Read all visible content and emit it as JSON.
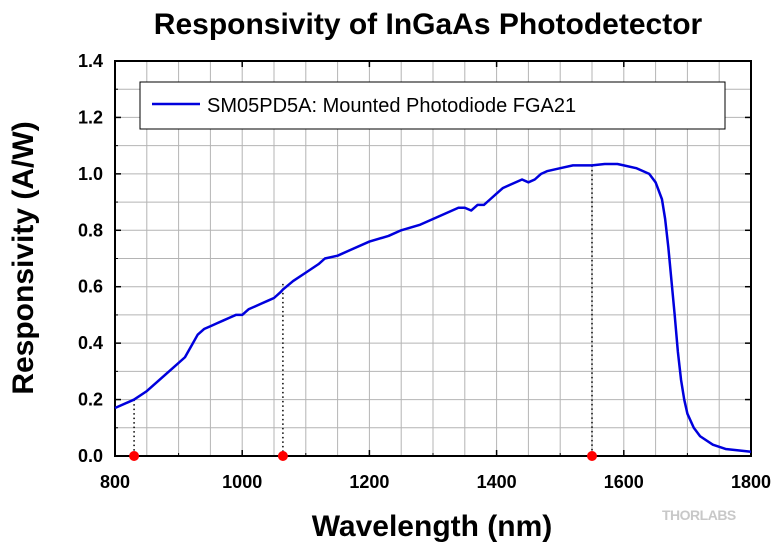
{
  "chart_data": {
    "type": "line",
    "title": "Responsivity of InGaAs Photodetector",
    "xlabel": "Wavelength (nm)",
    "ylabel": "Responsivity (A/W)",
    "xlim": [
      800,
      1800
    ],
    "ylim": [
      0.0,
      1.4
    ],
    "xticks": [
      800,
      1000,
      1200,
      1400,
      1600,
      1800
    ],
    "xtick_labels": [
      "800",
      "1000",
      "1200",
      "1400",
      "1600",
      "1800"
    ],
    "yticks": [
      0.0,
      0.2,
      0.4,
      0.6,
      0.8,
      1.0,
      1.2,
      1.4
    ],
    "ytick_labels": [
      "0.0",
      "0.2",
      "0.4",
      "0.6",
      "0.8",
      "1.0",
      "1.2",
      "1.4"
    ],
    "grid": true,
    "legend_position": "top",
    "series": [
      {
        "name": "SM05PD5A: Mounted Photodiode FGA21",
        "color": "#0000dd",
        "x": [
          800,
          830,
          850,
          870,
          890,
          910,
          920,
          930,
          940,
          950,
          960,
          970,
          980,
          990,
          1000,
          1010,
          1020,
          1030,
          1040,
          1050,
          1060,
          1064,
          1080,
          1100,
          1120,
          1130,
          1150,
          1170,
          1200,
          1230,
          1250,
          1280,
          1300,
          1320,
          1340,
          1350,
          1360,
          1370,
          1380,
          1390,
          1400,
          1410,
          1420,
          1440,
          1450,
          1460,
          1470,
          1480,
          1500,
          1520,
          1550,
          1570,
          1590,
          1600,
          1620,
          1640,
          1650,
          1660,
          1665,
          1670,
          1675,
          1680,
          1685,
          1690,
          1695,
          1700,
          1710,
          1720,
          1740,
          1760,
          1780,
          1800
        ],
        "y": [
          0.17,
          0.2,
          0.23,
          0.27,
          0.31,
          0.35,
          0.39,
          0.43,
          0.45,
          0.46,
          0.47,
          0.48,
          0.49,
          0.5,
          0.5,
          0.52,
          0.53,
          0.54,
          0.55,
          0.56,
          0.58,
          0.59,
          0.62,
          0.65,
          0.68,
          0.7,
          0.71,
          0.73,
          0.76,
          0.78,
          0.8,
          0.82,
          0.84,
          0.86,
          0.88,
          0.88,
          0.87,
          0.89,
          0.89,
          0.91,
          0.93,
          0.95,
          0.96,
          0.98,
          0.97,
          0.98,
          1.0,
          1.01,
          1.02,
          1.03,
          1.03,
          1.035,
          1.035,
          1.03,
          1.02,
          1.0,
          0.97,
          0.91,
          0.84,
          0.74,
          0.62,
          0.5,
          0.37,
          0.27,
          0.2,
          0.15,
          0.1,
          0.07,
          0.04,
          0.025,
          0.02,
          0.015
        ]
      }
    ],
    "annotations": [
      {
        "x": 830,
        "y": 0.2,
        "style": "dotted-drop-line",
        "marker_color": "#ff0000"
      },
      {
        "x": 1064,
        "y": 0.61,
        "style": "dotted-drop-line",
        "marker_color": "#ff0000"
      },
      {
        "x": 1550,
        "y": 1.03,
        "style": "dotted-drop-line",
        "marker_color": "#ff0000"
      }
    ]
  },
  "brand": {
    "logo_text": "THORLABS"
  }
}
